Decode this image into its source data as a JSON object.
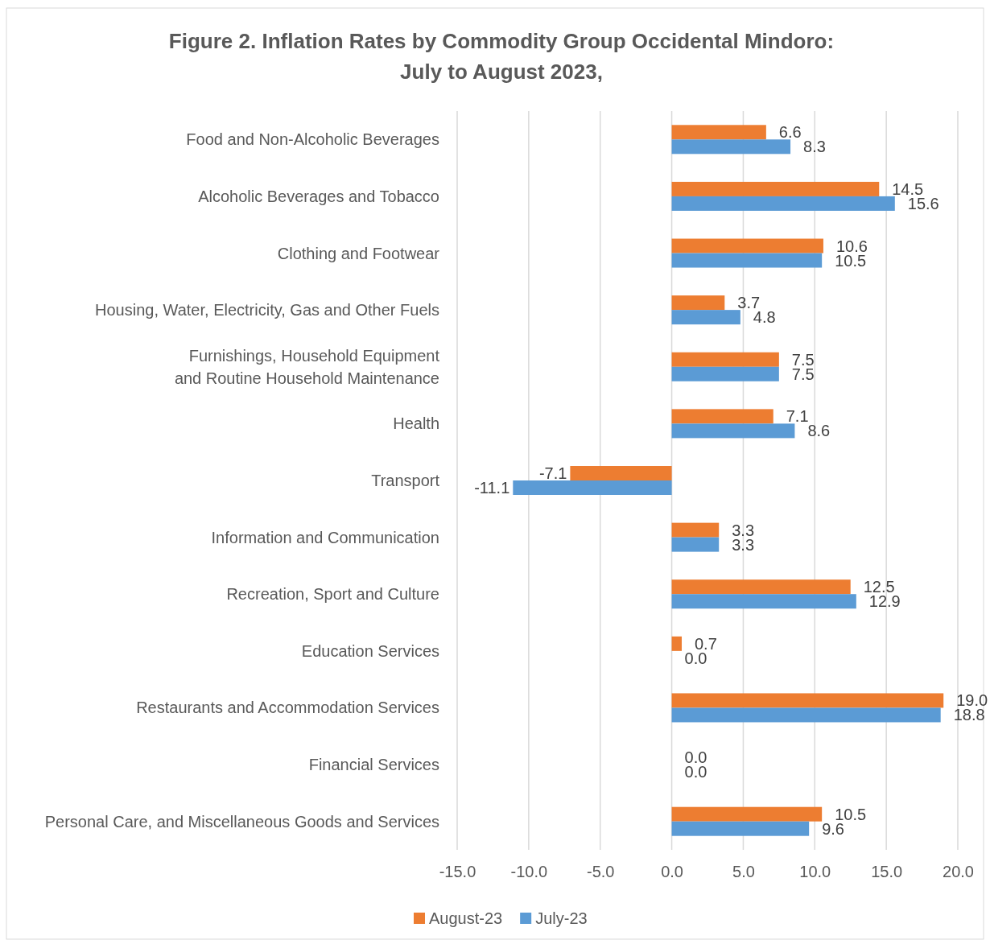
{
  "chart_data": {
    "type": "bar",
    "orientation": "horizontal",
    "title": "Figure 2. Inflation Rates by Commodity Group Occidental Mindoro:\nJuly to August 2023,",
    "categories": [
      "Food and Non-Alcoholic Beverages",
      "Alcoholic Beverages and Tobacco",
      "Clothing and Footwear",
      "Housing, Water, Electricity, Gas and Other Fuels",
      "Furnishings, Household Equipment\nand Routine Household Maintenance",
      "Health",
      "Transport",
      "Information and Communication",
      "Recreation, Sport and Culture",
      "Education Services",
      "Restaurants and Accommodation Services",
      "Financial Services",
      "Personal Care, and Miscellaneous Goods and Services"
    ],
    "series": [
      {
        "name": "August-23",
        "color": "#ed7d31",
        "values": [
          6.6,
          14.5,
          10.6,
          3.7,
          7.5,
          7.1,
          -7.1,
          3.3,
          12.5,
          0.7,
          19.0,
          0.0,
          10.5
        ],
        "value_labels": [
          "6.6",
          "14.5",
          "10.6",
          "3.7",
          "7.5",
          "7.1",
          "-7.1",
          "3.3",
          "12.5",
          "0.7",
          "19.0",
          "0.0",
          "10.5"
        ]
      },
      {
        "name": "July-23",
        "color": "#5b9bd5",
        "values": [
          8.3,
          15.6,
          10.5,
          4.8,
          7.5,
          8.6,
          -11.1,
          3.3,
          12.9,
          0.0,
          18.8,
          0.0,
          9.6
        ],
        "value_labels": [
          "8.3",
          "15.6",
          "10.5",
          "4.8",
          "7.5",
          "8.6",
          "-11.1",
          "3.3",
          "12.9",
          "0.0",
          "18.8",
          "0.0",
          "9.6"
        ]
      }
    ],
    "xlim": [
      -15,
      20
    ],
    "xticks": [
      {
        "value": -15,
        "label": "-15.0"
      },
      {
        "value": -10,
        "label": "-10.0"
      },
      {
        "value": -5,
        "label": "-5.0"
      },
      {
        "value": 0,
        "label": "0.0"
      },
      {
        "value": 5,
        "label": "5.0"
      },
      {
        "value": 10,
        "label": "10.0"
      },
      {
        "value": 15,
        "label": "15.0"
      },
      {
        "value": 20,
        "label": "20.0"
      }
    ],
    "grid": "x",
    "legend": "bottom"
  }
}
